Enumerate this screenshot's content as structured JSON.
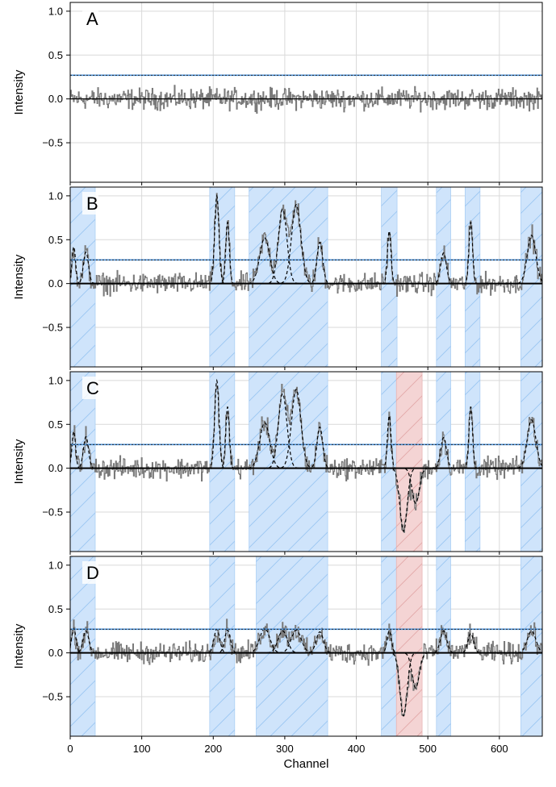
{
  "chart_data": {
    "type": "line",
    "xlabel": "Channel",
    "xlim": [
      0,
      660
    ],
    "x_ticks": [
      0,
      100,
      200,
      300,
      400,
      500,
      600
    ],
    "x_tick_labels": [
      "0",
      "100",
      "200",
      "300",
      "400",
      "500",
      "600"
    ],
    "ylim": [
      -0.95,
      1.1
    ],
    "y_ticks": [
      -0.5,
      0.0,
      0.5,
      1.0
    ],
    "y_tick_labels": [
      "−0.5",
      "0.0",
      "0.5",
      "1.0"
    ],
    "grid": true,
    "threshold_value": 0.27,
    "colors": {
      "spectrum": "#7a7a7a",
      "fit": "#000000",
      "threshold": "#4a90d9",
      "positive_region_fill": "#cfe4fb",
      "positive_region_hatch": "#9cc6f2",
      "negative_region_fill": "#f4d4d4",
      "negative_region_hatch": "#e3a8a8",
      "grid": "#d9d9d9"
    },
    "panels": [
      {
        "label": "A",
        "ylabel": "Intensity",
        "positive_regions": [],
        "negative_regions": [],
        "components": []
      },
      {
        "label": "B",
        "ylabel": "Intensity",
        "positive_regions": [
          [
            0,
            35
          ],
          [
            195,
            230
          ],
          [
            250,
            360
          ],
          [
            435,
            457
          ],
          [
            512,
            532
          ],
          [
            552,
            573
          ],
          [
            630,
            660
          ]
        ],
        "negative_regions": [],
        "components": [
          {
            "center": 5,
            "amplitude": 0.42,
            "sigma": 2.5
          },
          {
            "center": 22,
            "amplitude": 0.36,
            "sigma": 3.5
          },
          {
            "center": 205,
            "amplitude": 1.0,
            "sigma": 3.0
          },
          {
            "center": 220,
            "amplitude": 0.7,
            "sigma": 2.5
          },
          {
            "center": 272,
            "amplitude": 0.52,
            "sigma": 7.0
          },
          {
            "center": 297,
            "amplitude": 0.85,
            "sigma": 6.0
          },
          {
            "center": 316,
            "amplitude": 0.9,
            "sigma": 6.5
          },
          {
            "center": 349,
            "amplitude": 0.47,
            "sigma": 4.0
          },
          {
            "center": 446,
            "amplitude": 0.6,
            "sigma": 2.5
          },
          {
            "center": 522,
            "amplitude": 0.35,
            "sigma": 4.0
          },
          {
            "center": 560,
            "amplitude": 0.7,
            "sigma": 2.5
          },
          {
            "center": 645,
            "amplitude": 0.55,
            "sigma": 6.0
          }
        ]
      },
      {
        "label": "C",
        "ylabel": "Intensity",
        "positive_regions": [
          [
            0,
            35
          ],
          [
            195,
            230
          ],
          [
            250,
            360
          ],
          [
            435,
            457
          ],
          [
            512,
            532
          ],
          [
            552,
            573
          ],
          [
            630,
            660
          ]
        ],
        "negative_regions": [
          [
            456,
            492
          ]
        ],
        "components": [
          {
            "center": 5,
            "amplitude": 0.42,
            "sigma": 2.5
          },
          {
            "center": 22,
            "amplitude": 0.36,
            "sigma": 3.5
          },
          {
            "center": 205,
            "amplitude": 1.0,
            "sigma": 3.0
          },
          {
            "center": 220,
            "amplitude": 0.7,
            "sigma": 2.5
          },
          {
            "center": 272,
            "amplitude": 0.52,
            "sigma": 7.0
          },
          {
            "center": 297,
            "amplitude": 0.85,
            "sigma": 6.0
          },
          {
            "center": 316,
            "amplitude": 0.9,
            "sigma": 6.5
          },
          {
            "center": 349,
            "amplitude": 0.47,
            "sigma": 4.0
          },
          {
            "center": 446,
            "amplitude": 0.6,
            "sigma": 2.5
          },
          {
            "center": 466,
            "amplitude": -0.72,
            "sigma": 5.0
          },
          {
            "center": 483,
            "amplitude": -0.4,
            "sigma": 5.0
          },
          {
            "center": 522,
            "amplitude": 0.35,
            "sigma": 4.0
          },
          {
            "center": 560,
            "amplitude": 0.7,
            "sigma": 2.5
          },
          {
            "center": 645,
            "amplitude": 0.55,
            "sigma": 6.0
          }
        ]
      },
      {
        "label": "D",
        "ylabel": "Intensity",
        "positive_regions": [
          [
            0,
            35
          ],
          [
            195,
            230
          ],
          [
            260,
            360
          ],
          [
            435,
            457
          ],
          [
            512,
            532
          ],
          [
            630,
            660
          ]
        ],
        "negative_regions": [
          [
            456,
            492
          ]
        ],
        "components": [
          {
            "center": 5,
            "amplitude": 0.28,
            "sigma": 3.0
          },
          {
            "center": 22,
            "amplitude": 0.25,
            "sigma": 4.0
          },
          {
            "center": 205,
            "amplitude": 0.27,
            "sigma": 4.0
          },
          {
            "center": 220,
            "amplitude": 0.26,
            "sigma": 4.0
          },
          {
            "center": 272,
            "amplitude": 0.28,
            "sigma": 7.0
          },
          {
            "center": 297,
            "amplitude": 0.25,
            "sigma": 6.5
          },
          {
            "center": 316,
            "amplitude": 0.26,
            "sigma": 7.0
          },
          {
            "center": 349,
            "amplitude": 0.24,
            "sigma": 5.0
          },
          {
            "center": 446,
            "amplitude": 0.25,
            "sigma": 3.0
          },
          {
            "center": 466,
            "amplitude": -0.72,
            "sigma": 5.0
          },
          {
            "center": 483,
            "amplitude": -0.4,
            "sigma": 5.0
          },
          {
            "center": 522,
            "amplitude": 0.25,
            "sigma": 4.5
          },
          {
            "center": 560,
            "amplitude": 0.22,
            "sigma": 4.0
          },
          {
            "center": 645,
            "amplitude": 0.25,
            "sigma": 6.0
          }
        ]
      }
    ]
  }
}
